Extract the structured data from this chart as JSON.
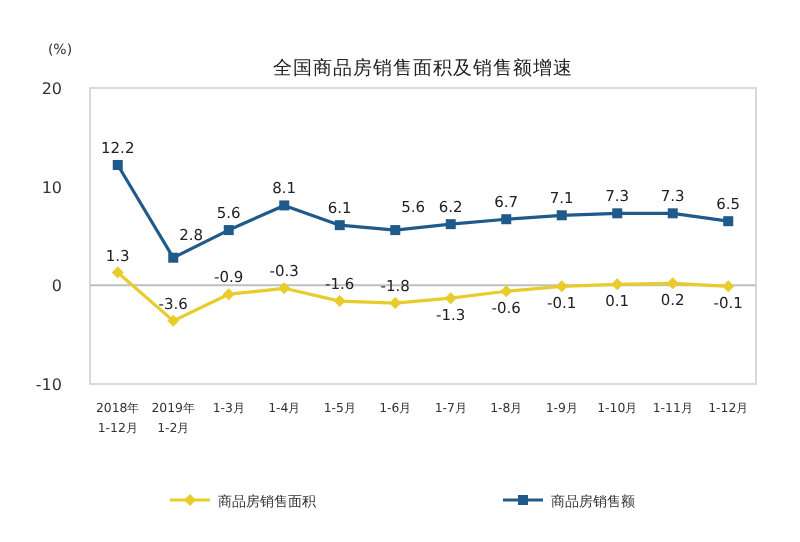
{
  "chart_data": {
    "type": "line",
    "title": "全国商品房销售面积及销售额增速",
    "ylabel": "(%)",
    "categories": [
      "2018年\n1-12月",
      "2019年\n1-2月",
      "1-3月",
      "1-4月",
      "1-5月",
      "1-6月",
      "1-7月",
      "1-8月",
      "1-9月",
      "1-10月",
      "1-11月",
      "1-12月"
    ],
    "series": [
      {
        "name": "商品房销售面积",
        "color": "#e8cc2c",
        "marker": "diamond",
        "values": [
          1.3,
          -3.6,
          -0.9,
          -0.3,
          -1.6,
          -1.8,
          -1.3,
          -0.6,
          -0.1,
          0.1,
          0.2,
          -0.1
        ]
      },
      {
        "name": "商品房销售额",
        "color": "#1f5a8a",
        "marker": "square",
        "values": [
          12.2,
          2.8,
          5.6,
          8.1,
          6.1,
          5.6,
          6.2,
          6.7,
          7.1,
          7.3,
          7.3,
          6.5
        ]
      }
    ],
    "ylim": [
      -10,
      20
    ],
    "yticks": [
      -10,
      0,
      10,
      20
    ],
    "ref_lines": [
      {
        "axis": "y",
        "value": 0,
        "color": "#bfbfbf"
      }
    ],
    "data_labels": true,
    "legend": "bottom"
  }
}
